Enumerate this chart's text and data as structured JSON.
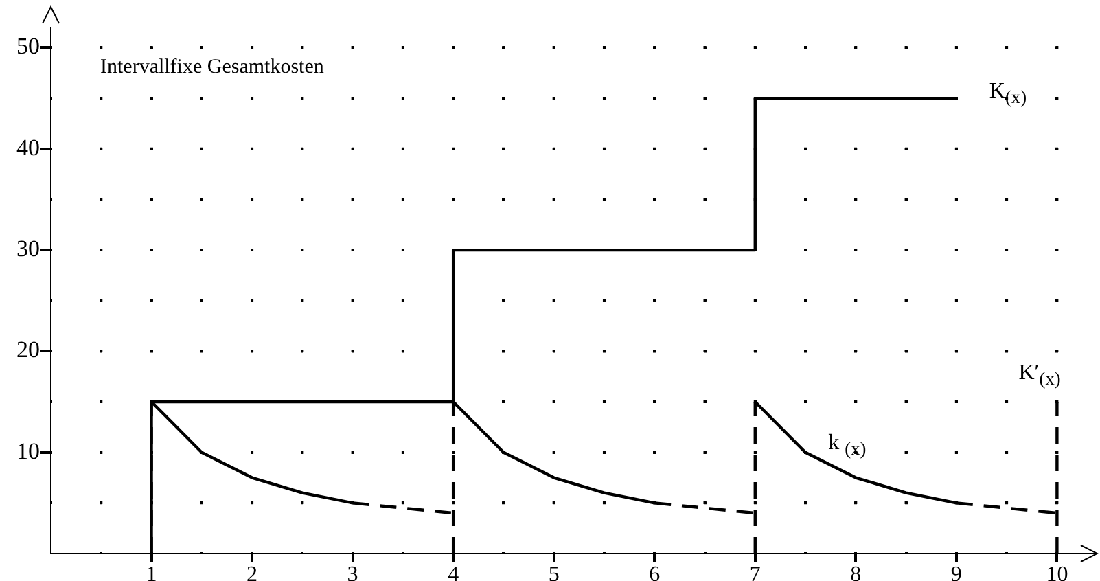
{
  "chart_data": {
    "type": "line",
    "annotations": [
      "Intervallfixe Gesamtkosten"
    ],
    "xlim": [
      0,
      10.4
    ],
    "ylim": [
      0,
      52
    ],
    "xticks": [
      {
        "value": 0.5,
        "label": null
      },
      1,
      {
        "value": 1.5,
        "label": null
      },
      2,
      {
        "value": 2.5,
        "label": null
      },
      3,
      {
        "value": 3.5,
        "label": null
      },
      4,
      {
        "value": 4.5,
        "label": null
      },
      5,
      {
        "value": 5.5,
        "label": null
      },
      6,
      {
        "value": 6.5,
        "label": null
      },
      7,
      {
        "value": 7.5,
        "label": null
      },
      8,
      {
        "value": 8.5,
        "label": null
      },
      9,
      {
        "value": 9.5,
        "label": null
      },
      10
    ],
    "yticks": [
      {
        "value": 5,
        "label": null
      },
      10,
      {
        "value": 15,
        "label": null
      },
      20,
      {
        "value": 25,
        "label": null
      },
      30,
      {
        "value": 35,
        "label": null
      },
      40,
      {
        "value": 45,
        "label": null
      },
      50
    ],
    "grid": true,
    "series": [
      {
        "name": "K$_{(x)}$",
        "type": "step",
        "color": "#000000",
        "line_style": "solid",
        "x": [
          1,
          1,
          4,
          7,
          9
        ],
        "values": [
          0,
          15,
          30,
          45,
          45
        ]
      },
      {
        "color": "#000000",
        "line_style": "solid",
        "x": [
          1,
          1.5,
          2,
          2.5,
          3
        ],
        "values": [
          15,
          10,
          7.5,
          6,
          5
        ]
      },
      {
        "color": "#000000",
        "line_style": "solid",
        "x": [
          4,
          4.5,
          5,
          5.5,
          6
        ],
        "values": [
          15,
          10,
          7.5,
          6,
          5
        ]
      },
      {
        "name": "k $_{(x)}$",
        "color": "#000000",
        "line_style": "solid",
        "x": [
          7,
          7.5,
          8,
          8.5,
          9
        ],
        "values": [
          15,
          10,
          7.5,
          6,
          5
        ]
      },
      {
        "color": "#000000",
        "line_style": "dashed",
        "x": [
          3,
          4
        ],
        "values": [
          5,
          4
        ]
      },
      {
        "color": "#000000",
        "line_style": "dashed",
        "x": [
          6,
          7
        ],
        "values": [
          5,
          4
        ]
      },
      {
        "color": "#000000",
        "line_style": "dashed",
        "x": [
          9,
          10
        ],
        "values": [
          5,
          4
        ]
      },
      {
        "color": "#000000",
        "line_style": "dashed",
        "x": [
          1,
          1
        ],
        "values": [
          0,
          15
        ]
      },
      {
        "color": "#000000",
        "line_style": "dashed",
        "x": [
          4,
          4
        ],
        "values": [
          0,
          15
        ]
      },
      {
        "color": "#000000",
        "line_style": "dashed",
        "x": [
          7,
          7
        ],
        "values": [
          0,
          15
        ]
      },
      {
        "name": "K′$_{(x)}$",
        "color": "#000000",
        "line_style": "dashed",
        "x": [
          10,
          10
        ],
        "values": [
          0,
          15
        ]
      }
    ]
  }
}
